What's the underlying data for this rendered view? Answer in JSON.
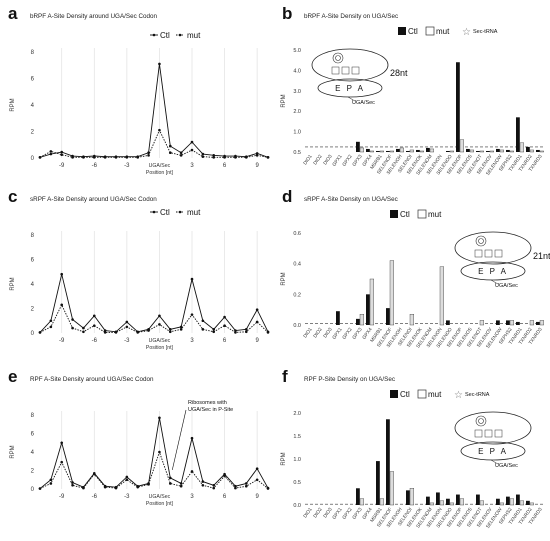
{
  "panels": [
    {
      "letter": "a",
      "title": "bRPF A-Site Density around UGA/Sec Codon"
    },
    {
      "letter": "b",
      "title": "bRPF A-Site Density on UGA/Sec"
    },
    {
      "letter": "c",
      "title": "sRPF A-Site Density around UGA/Sec Codon"
    },
    {
      "letter": "d",
      "title": "sRPF A-Site Density on UGA/Sec"
    },
    {
      "letter": "e",
      "title": "RPF A-Site Density around UGA/Sec Codon"
    },
    {
      "letter": "f",
      "title": "RPF P-Site Density on UGA/Sec"
    }
  ],
  "chart_data": [
    {
      "id": "a",
      "type": "line",
      "title": "bRPF A-Site Density around UGA/Sec Codon",
      "ylabel": "RPM",
      "xlabel_lines": [
        "UGA/Sec",
        "Position [nt]"
      ],
      "ylim": [
        0,
        8
      ],
      "yticks": [
        0,
        2,
        4,
        6,
        8
      ],
      "xticks": [
        -9,
        -6,
        -3,
        3,
        6,
        9
      ],
      "x": [
        -11,
        -10,
        -9,
        -8,
        -7,
        -6,
        -5,
        -4,
        -3,
        -2,
        -1,
        0,
        1,
        2,
        3,
        4,
        5,
        6,
        7,
        8,
        9,
        10
      ],
      "series": [
        {
          "name": "Ctl",
          "style": "solid",
          "values": [
            0.05,
            0.3,
            0.45,
            0.15,
            0.1,
            0.15,
            0.1,
            0.1,
            0.1,
            0.1,
            0.4,
            7.1,
            0.9,
            0.4,
            1.2,
            0.3,
            0.2,
            0.15,
            0.15,
            0.1,
            0.35,
            0.05
          ]
        },
        {
          "name": "mut",
          "style": "dotted",
          "values": [
            0.05,
            0.5,
            0.25,
            0.05,
            0.05,
            0.05,
            0.05,
            0.05,
            0.05,
            0.05,
            0.2,
            2.1,
            0.4,
            0.2,
            0.6,
            0.1,
            0.05,
            0.05,
            0.05,
            0.05,
            0.2,
            0.05
          ]
        }
      ],
      "legend": [
        "Ctl",
        "mut"
      ]
    },
    {
      "id": "b",
      "type": "bar",
      "title": "bRPF A-Site Density on UGA/Sec",
      "ylabel": "RPM",
      "ylim": [
        0,
        5
      ],
      "yticks": [
        "0.5",
        "1.0",
        "2.0",
        "3.0",
        "4.0",
        "5.0"
      ],
      "categories": [
        "DIO1",
        "DIO2",
        "DIO3",
        "GPX1",
        "GPX2",
        "GPX3",
        "GPX4",
        "MSRB1",
        "SELENOF",
        "SELENOH",
        "SELENOI",
        "SELENOK",
        "SELENOM",
        "SELENON",
        "SELENOO",
        "SELENOP",
        "SELENOS",
        "SELENOT",
        "SELENOV",
        "SELENOW",
        "SEPHS2",
        "TXNRD1",
        "TXNRD2",
        "TXNRD3"
      ],
      "series": [
        {
          "name": "Ctl",
          "values": [
            0,
            0,
            0,
            0,
            0,
            0.5,
            0.15,
            0.05,
            0.05,
            0.15,
            0.05,
            0.1,
            0.2,
            0,
            0.05,
            4.4,
            0.15,
            0.05,
            0.05,
            0.15,
            0.1,
            1.7,
            0.25,
            0.1
          ]
        },
        {
          "name": "mut",
          "values": [
            0,
            0,
            0,
            0,
            0,
            0.2,
            0.05,
            0.05,
            0.05,
            0.2,
            0.1,
            0.05,
            0.15,
            0,
            0.05,
            0.6,
            0.1,
            0.05,
            0.05,
            0.1,
            0.05,
            0.45,
            0.1,
            0.05
          ]
        }
      ],
      "legend": [
        "Ctl",
        "mut",
        "Sec-tRNA"
      ],
      "annotations": [
        "28nt",
        "E P A",
        "UGA/Sec"
      ]
    },
    {
      "id": "c",
      "type": "line",
      "title": "sRPF A-Site Density around UGA/Sec Codon",
      "ylabel": "RPM",
      "xlabel_lines": [
        "UGA/Sec",
        "Position [nt]"
      ],
      "ylim": [
        0,
        8
      ],
      "yticks": [
        0,
        2,
        4,
        6,
        8
      ],
      "xticks": [
        -9,
        -6,
        -3,
        3,
        6,
        9
      ],
      "x": [
        -11,
        -10,
        -9,
        -8,
        -7,
        -6,
        -5,
        -4,
        -3,
        -2,
        -1,
        0,
        1,
        2,
        3,
        4,
        5,
        6,
        7,
        8,
        9,
        10
      ],
      "series": [
        {
          "name": "Ctl",
          "style": "solid",
          "values": [
            0.05,
            1.0,
            4.8,
            1.1,
            0.4,
            1.4,
            0.2,
            0.1,
            0.9,
            0.1,
            0.3,
            1.4,
            0.3,
            0.5,
            4.4,
            1.0,
            0.3,
            1.3,
            0.2,
            0.3,
            1.9,
            0.1
          ]
        },
        {
          "name": "mut",
          "style": "dotted",
          "values": [
            0.05,
            0.5,
            2.3,
            0.4,
            0.1,
            0.6,
            0.05,
            0.05,
            0.5,
            0.05,
            0.2,
            0.7,
            0.1,
            0.3,
            1.5,
            0.3,
            0.1,
            0.6,
            0.05,
            0.1,
            0.9,
            0.05
          ]
        }
      ],
      "legend": [
        "Ctl",
        "mut"
      ]
    },
    {
      "id": "d",
      "type": "bar",
      "title": "sRPF A-Site Density on UGA/Sec",
      "ylabel": "RPM",
      "ylim": [
        0,
        0.6
      ],
      "yticks": [
        "0.0",
        "0.2",
        "0.4",
        "0.6"
      ],
      "categories": [
        "DIO1",
        "DIO2",
        "DIO3",
        "GPX1",
        "GPX2",
        "GPX3",
        "GPX4",
        "MSRB1",
        "SELENOF",
        "SELENOH",
        "SELENOI",
        "SELENOK",
        "SELENOM",
        "SELENON",
        "SELENOO",
        "SELENOP",
        "SELENOS",
        "SELENOT",
        "SELENOV",
        "SELENOW",
        "SEPHS2",
        "TXNRD1",
        "TXNRD2",
        "TXNRD3"
      ],
      "series": [
        {
          "name": "Ctl",
          "values": [
            0,
            0,
            0,
            0.09,
            0,
            0.04,
            0.2,
            0,
            0.11,
            0,
            0,
            0,
            0,
            0,
            0.03,
            0,
            0,
            0,
            0,
            0.03,
            0.03,
            0.02,
            0,
            0.02
          ]
        },
        {
          "name": "mut",
          "values": [
            0,
            0,
            0,
            0,
            0,
            0.07,
            0.3,
            0,
            0.42,
            0,
            0.07,
            0,
            0,
            0.38,
            0,
            0,
            0,
            0.03,
            0,
            0,
            0.03,
            0,
            0.03,
            0.03
          ]
        }
      ],
      "legend": [
        "Ctl",
        "mut"
      ],
      "annotations": [
        "21nt",
        "E P A",
        "UGA/Sec"
      ]
    },
    {
      "id": "e",
      "type": "line",
      "title": "RPF A-Site Density around UGA/Sec Codon",
      "ylabel": "RPM",
      "xlabel_lines": [
        "UGA/Sec",
        "Position [nt]"
      ],
      "ylim": [
        0,
        8
      ],
      "yticks": [
        0,
        2,
        4,
        6,
        8
      ],
      "xticks": [
        -9,
        -6,
        -3,
        3,
        6,
        9
      ],
      "x": [
        -11,
        -10,
        -9,
        -8,
        -7,
        -6,
        -5,
        -4,
        -3,
        -2,
        -1,
        0,
        1,
        2,
        3,
        4,
        5,
        6,
        7,
        8,
        9,
        10
      ],
      "series": [
        {
          "name": "Ctl",
          "style": "solid",
          "values": [
            0.05,
            1.0,
            5.0,
            0.7,
            0.2,
            1.7,
            0.3,
            0.2,
            1.3,
            0.3,
            0.6,
            7.7,
            1.2,
            0.6,
            5.5,
            0.8,
            0.4,
            1.6,
            0.3,
            0.6,
            2.2,
            0.1
          ]
        },
        {
          "name": "mut",
          "style": "dotted",
          "values": [
            0.05,
            0.6,
            2.9,
            0.4,
            0.1,
            1.6,
            0.2,
            0.1,
            1.0,
            0.2,
            0.5,
            4.0,
            0.6,
            0.3,
            1.9,
            0.4,
            0.1,
            1.4,
            0.1,
            0.3,
            1.0,
            0.05
          ]
        }
      ],
      "legend": [
        "Ctl",
        "mut"
      ],
      "annotations": [
        "Ribosomes with",
        "UGA/Sec in P-Site"
      ]
    },
    {
      "id": "f",
      "type": "bar",
      "title": "RPF P-Site Density on UGA/Sec",
      "ylabel": "RPM",
      "ylim": [
        0,
        2.2
      ],
      "yticks": [
        "0.0",
        "0.5",
        "1.0",
        "1.5",
        "2.0"
      ],
      "categories": [
        "DIO1",
        "DIO2",
        "DIO3",
        "GPX1",
        "GPX2",
        "GPX3",
        "GPX4",
        "MSRB1",
        "SELENOF",
        "SELENOH",
        "SELENOI",
        "SELENOK",
        "SELENOM",
        "SELENON",
        "SELENOO",
        "SELENOP",
        "SELENOS",
        "SELENOT",
        "SELENOV",
        "SELENOW",
        "SEPHS2",
        "TXNRD1",
        "TXNRD2",
        "TXNRD3"
      ],
      "series": [
        {
          "name": "Ctl",
          "values": [
            0,
            0,
            0,
            0,
            0,
            0.4,
            0,
            1.05,
            2.05,
            0,
            0.35,
            0,
            0.2,
            0.3,
            0.15,
            0.25,
            0,
            0.25,
            0,
            0.15,
            0.2,
            0.25,
            0.1,
            0
          ]
        },
        {
          "name": "mut",
          "values": [
            0,
            0,
            0,
            0,
            0,
            0.15,
            0,
            0.15,
            0.8,
            0,
            0.4,
            0,
            0.05,
            0.1,
            0.05,
            0.15,
            0,
            0.1,
            0,
            0.05,
            0.15,
            0.1,
            0.05,
            0
          ]
        }
      ],
      "legend": [
        "Ctl",
        "mut",
        "Sec-tRNA"
      ],
      "annotations": [
        "E P A",
        "UGA/Sec"
      ]
    }
  ]
}
